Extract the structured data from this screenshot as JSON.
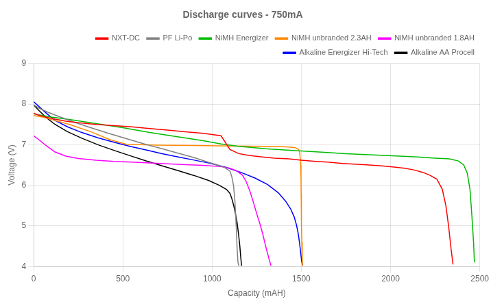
{
  "chart_data": {
    "type": "line",
    "title": "Discharge curves - 750mA",
    "x_label": "Capacity (mAH)",
    "y_label": "Voltage (V)",
    "xlim": [
      0,
      2500
    ],
    "ylim": [
      4,
      9
    ],
    "xticks": [
      0,
      500,
      1000,
      1500,
      2000,
      2500
    ],
    "yticks": [
      4,
      5,
      6,
      7,
      8,
      9
    ],
    "grid": true,
    "legend": "upper right",
    "series": [
      {
        "name": "NXT-DC",
        "color": "#ff0000",
        "x": [
          0,
          20,
          50,
          80,
          120,
          180,
          250,
          350,
          450,
          550,
          650,
          750,
          850,
          950,
          1050,
          1100,
          1150,
          1200,
          1280,
          1350,
          1430,
          1500,
          1580,
          1650,
          1730,
          1800,
          1880,
          1950,
          2020,
          2080,
          2130,
          2180,
          2220,
          2260,
          2290,
          2310,
          2325,
          2340,
          2350
        ],
        "values": [
          7.78,
          7.74,
          7.7,
          7.67,
          7.63,
          7.58,
          7.54,
          7.5,
          7.47,
          7.44,
          7.4,
          7.36,
          7.32,
          7.28,
          7.22,
          6.88,
          6.78,
          6.74,
          6.7,
          6.67,
          6.65,
          6.62,
          6.59,
          6.57,
          6.54,
          6.52,
          6.5,
          6.48,
          6.45,
          6.42,
          6.38,
          6.32,
          6.25,
          6.15,
          5.9,
          5.5,
          5.0,
          4.4,
          4.05
        ]
      },
      {
        "name": "PF Li-Po",
        "color": "#808080",
        "x": [
          0,
          30,
          80,
          150,
          230,
          320,
          420,
          520,
          620,
          720,
          820,
          900,
          970,
          1030,
          1070,
          1100,
          1110,
          1120,
          1128,
          1135,
          1140,
          1145,
          1150
        ],
        "values": [
          7.98,
          7.9,
          7.8,
          7.68,
          7.55,
          7.42,
          7.28,
          7.15,
          7.02,
          6.9,
          6.78,
          6.68,
          6.58,
          6.5,
          6.44,
          6.35,
          6.22,
          6.0,
          5.6,
          5.0,
          4.45,
          4.1,
          4.02
        ]
      },
      {
        "name": "NiMH Energizer",
        "color": "#00bb00",
        "x": [
          0,
          50,
          100,
          200,
          350,
          500,
          650,
          800,
          950,
          1050,
          1150,
          1300,
          1450,
          1600,
          1750,
          1900,
          2050,
          2150,
          2250,
          2330,
          2380,
          2410,
          2430,
          2445,
          2455,
          2465,
          2470
        ],
        "values": [
          7.76,
          7.72,
          7.68,
          7.62,
          7.52,
          7.42,
          7.3,
          7.2,
          7.1,
          7.02,
          6.96,
          6.9,
          6.86,
          6.82,
          6.78,
          6.75,
          6.72,
          6.7,
          6.67,
          6.65,
          6.6,
          6.5,
          6.3,
          5.9,
          5.3,
          4.6,
          4.1
        ]
      },
      {
        "name": "NiMH unbranded 2.3AH",
        "color": "#ff8800",
        "x": [
          0,
          50,
          100,
          200,
          320,
          430,
          520,
          600,
          700,
          900,
          1100,
          1300,
          1400,
          1440,
          1460,
          1470,
          1478,
          1485,
          1490,
          1493,
          1496,
          1498,
          1499,
          1500,
          1501,
          1503,
          1505,
          1507
        ],
        "values": [
          7.72,
          7.68,
          7.62,
          7.5,
          7.32,
          7.12,
          7.01,
          7.0,
          6.99,
          6.98,
          6.97,
          6.96,
          6.95,
          6.94,
          6.93,
          6.92,
          6.9,
          6.88,
          6.82,
          6.7,
          6.5,
          6.2,
          5.8,
          5.4,
          5.05,
          4.6,
          4.15,
          4.02
        ]
      },
      {
        "name": "NiMH unbranded 1.8AH",
        "color": "#ff00ff",
        "x": [
          0,
          30,
          70,
          120,
          180,
          250,
          350,
          450,
          550,
          650,
          750,
          850,
          950,
          1050,
          1100,
          1140,
          1170,
          1190,
          1210,
          1230,
          1250,
          1268,
          1285,
          1300,
          1318,
          1330
        ],
        "values": [
          7.22,
          7.12,
          6.98,
          6.82,
          6.72,
          6.66,
          6.62,
          6.59,
          6.57,
          6.55,
          6.53,
          6.51,
          6.49,
          6.46,
          6.42,
          6.35,
          6.25,
          6.1,
          5.88,
          5.6,
          5.3,
          5.05,
          4.78,
          4.5,
          4.2,
          4.02
        ]
      },
      {
        "name": "Alkaline Energizer Hi-Tech",
        "color": "#0000ff",
        "x": [
          0,
          30,
          70,
          120,
          190,
          270,
          360,
          450,
          540,
          630,
          720,
          810,
          900,
          990,
          1080,
          1160,
          1240,
          1310,
          1370,
          1410,
          1440,
          1460,
          1473,
          1483,
          1490,
          1496,
          1502,
          1508
        ],
        "values": [
          8.06,
          7.94,
          7.78,
          7.6,
          7.44,
          7.3,
          7.17,
          7.06,
          6.96,
          6.87,
          6.78,
          6.7,
          6.62,
          6.54,
          6.44,
          6.32,
          6.18,
          6.02,
          5.82,
          5.62,
          5.42,
          5.22,
          5.02,
          4.8,
          4.58,
          4.35,
          4.12,
          4.02
        ]
      },
      {
        "name": "Alkaline AA Procell",
        "color": "#000000",
        "x": [
          0,
          30,
          70,
          120,
          190,
          270,
          360,
          450,
          540,
          630,
          720,
          810,
          900,
          980,
          1040,
          1080,
          1100,
          1110,
          1120,
          1130,
          1140,
          1148,
          1155,
          1160,
          1165
        ],
        "values": [
          7.98,
          7.84,
          7.67,
          7.5,
          7.32,
          7.16,
          7.0,
          6.86,
          6.73,
          6.6,
          6.48,
          6.36,
          6.24,
          6.12,
          6.0,
          5.9,
          5.8,
          5.68,
          5.52,
          5.32,
          5.08,
          4.8,
          4.52,
          4.25,
          4.02
        ]
      }
    ]
  }
}
